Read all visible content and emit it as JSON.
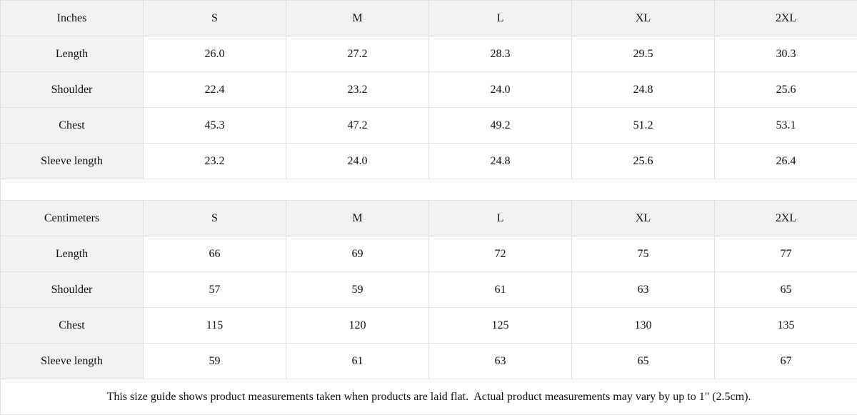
{
  "inches": {
    "unit_label": "Inches",
    "sizes": [
      "S",
      "M",
      "L",
      "XL",
      "2XL"
    ],
    "rows": [
      {
        "label": "Length",
        "values": [
          "26.0",
          "27.2",
          "28.3",
          "29.5",
          "30.3"
        ]
      },
      {
        "label": "Shoulder",
        "values": [
          "22.4",
          "23.2",
          "24.0",
          "24.8",
          "25.6"
        ]
      },
      {
        "label": "Chest",
        "values": [
          "45.3",
          "47.2",
          "49.2",
          "51.2",
          "53.1"
        ]
      },
      {
        "label": "Sleeve length",
        "values": [
          "23.2",
          "24.0",
          "24.8",
          "25.6",
          "26.4"
        ]
      }
    ]
  },
  "centimeters": {
    "unit_label": "Centimeters",
    "sizes": [
      "S",
      "M",
      "L",
      "XL",
      "2XL"
    ],
    "rows": [
      {
        "label": "Length",
        "values": [
          "66",
          "69",
          "72",
          "75",
          "77"
        ]
      },
      {
        "label": "Shoulder",
        "values": [
          "57",
          "59",
          "61",
          "63",
          "65"
        ]
      },
      {
        "label": "Chest",
        "values": [
          "115",
          "120",
          "125",
          "130",
          "135"
        ]
      },
      {
        "label": "Sleeve length",
        "values": [
          "59",
          "61",
          "63",
          "65",
          "67"
        ]
      }
    ]
  },
  "footer": {
    "note": "This size guide shows product measurements taken when products are laid flat.  Actual product measurements may vary by up to 1\" (2.5cm)."
  },
  "colors": {
    "header_bg": "#f1f1f1",
    "border": "#e0e0e0",
    "text": "#111111"
  }
}
